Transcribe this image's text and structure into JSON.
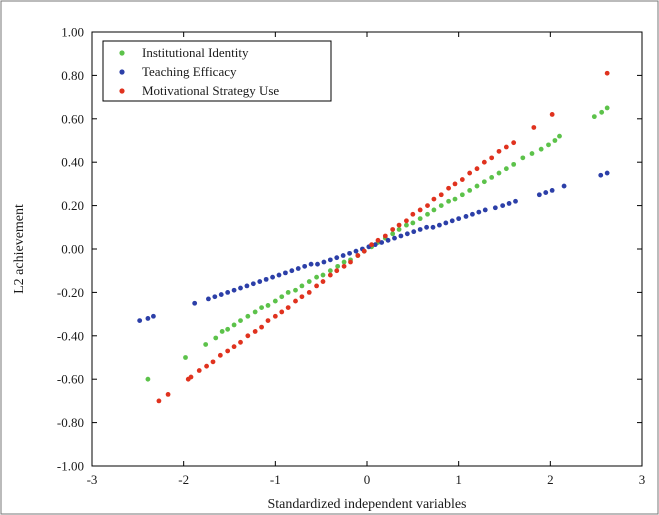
{
  "chart_data": {
    "type": "scatter",
    "title": "",
    "xlabel": "Standardized independent variables",
    "ylabel": "L2 achievement",
    "xlim": [
      -3,
      3
    ],
    "ylim": [
      -1.0,
      1.0
    ],
    "xticks": [
      -3,
      -2,
      -1,
      0,
      1,
      2,
      3
    ],
    "xtick_labels": [
      "-3",
      "-2",
      "-1",
      "0",
      "1",
      "2",
      "3"
    ],
    "yticks": [
      -1.0,
      -0.8,
      -0.6,
      -0.4,
      -0.2,
      0.0,
      0.2,
      0.4,
      0.6,
      0.8,
      1.0
    ],
    "ytick_labels": [
      "-1.00",
      "-0.80",
      "-0.60",
      "-0.40",
      "-0.20",
      "0.00",
      "0.20",
      "0.40",
      "0.60",
      "0.80",
      "1.00"
    ],
    "grid": false,
    "legend": "top-left",
    "series": [
      {
        "name": "Institutional Identity",
        "color": "#5cc24a",
        "x": [
          -2.39,
          -1.98,
          -1.76,
          -1.65,
          -1.58,
          -1.52,
          -1.45,
          -1.38,
          -1.3,
          -1.22,
          -1.15,
          -1.08,
          -1.0,
          -0.93,
          -0.86,
          -0.78,
          -0.71,
          -0.63,
          -0.55,
          -0.48,
          -0.4,
          -0.32,
          -0.25,
          -0.18,
          -0.1,
          -0.03,
          0.05,
          0.12,
          0.2,
          0.28,
          0.35,
          0.43,
          0.5,
          0.58,
          0.66,
          0.73,
          0.81,
          0.89,
          0.96,
          1.04,
          1.12,
          1.2,
          1.28,
          1.36,
          1.44,
          1.52,
          1.6,
          1.7,
          1.8,
          1.9,
          1.98,
          2.05,
          2.1,
          2.48,
          2.56,
          2.62
        ],
        "y": [
          -0.6,
          -0.5,
          -0.44,
          -0.41,
          -0.38,
          -0.37,
          -0.35,
          -0.33,
          -0.31,
          -0.29,
          -0.27,
          -0.26,
          -0.24,
          -0.22,
          -0.2,
          -0.19,
          -0.17,
          -0.15,
          -0.13,
          -0.12,
          -0.1,
          -0.08,
          -0.06,
          -0.05,
          -0.03,
          -0.01,
          0.01,
          0.03,
          0.05,
          0.07,
          0.09,
          0.11,
          0.12,
          0.14,
          0.16,
          0.18,
          0.2,
          0.22,
          0.23,
          0.25,
          0.27,
          0.29,
          0.31,
          0.33,
          0.35,
          0.37,
          0.39,
          0.42,
          0.44,
          0.46,
          0.48,
          0.5,
          0.52,
          0.61,
          0.63,
          0.65
        ]
      },
      {
        "name": "Teaching Efficacy",
        "color": "#2c3fa8",
        "x": [
          -2.48,
          -2.39,
          -2.33,
          -1.88,
          -1.73,
          -1.66,
          -1.59,
          -1.52,
          -1.45,
          -1.38,
          -1.31,
          -1.24,
          -1.17,
          -1.1,
          -1.03,
          -0.96,
          -0.89,
          -0.82,
          -0.75,
          -0.68,
          -0.61,
          -0.54,
          -0.47,
          -0.4,
          -0.33,
          -0.26,
          -0.19,
          -0.12,
          -0.05,
          0.02,
          0.09,
          0.16,
          0.23,
          0.3,
          0.37,
          0.44,
          0.51,
          0.58,
          0.65,
          0.72,
          0.79,
          0.86,
          0.93,
          1.0,
          1.08,
          1.15,
          1.22,
          1.29,
          1.4,
          1.48,
          1.55,
          1.62,
          1.88,
          1.95,
          2.02,
          2.15,
          2.55,
          2.62
        ],
        "y": [
          -0.33,
          -0.32,
          -0.31,
          -0.25,
          -0.23,
          -0.22,
          -0.21,
          -0.2,
          -0.19,
          -0.18,
          -0.17,
          -0.16,
          -0.15,
          -0.14,
          -0.13,
          -0.12,
          -0.11,
          -0.1,
          -0.09,
          -0.08,
          -0.07,
          -0.07,
          -0.06,
          -0.05,
          -0.04,
          -0.03,
          -0.02,
          -0.01,
          0.0,
          0.01,
          0.02,
          0.03,
          0.04,
          0.05,
          0.06,
          0.07,
          0.08,
          0.09,
          0.1,
          0.1,
          0.11,
          0.12,
          0.13,
          0.14,
          0.15,
          0.16,
          0.17,
          0.18,
          0.19,
          0.2,
          0.21,
          0.22,
          0.25,
          0.26,
          0.27,
          0.29,
          0.34,
          0.35
        ]
      },
      {
        "name": "Motivational Strategy Use",
        "color": "#e0321e",
        "x": [
          -2.27,
          -2.17,
          -1.95,
          -1.92,
          -1.83,
          -1.75,
          -1.68,
          -1.6,
          -1.52,
          -1.45,
          -1.38,
          -1.3,
          -1.22,
          -1.15,
          -1.08,
          -1.0,
          -0.93,
          -0.86,
          -0.78,
          -0.71,
          -0.63,
          -0.55,
          -0.48,
          -0.4,
          -0.33,
          -0.25,
          -0.18,
          -0.1,
          -0.03,
          0.05,
          0.12,
          0.2,
          0.28,
          0.35,
          0.43,
          0.5,
          0.58,
          0.66,
          0.73,
          0.81,
          0.89,
          0.96,
          1.04,
          1.12,
          1.2,
          1.28,
          1.36,
          1.44,
          1.52,
          1.6,
          1.82,
          2.02,
          2.62
        ],
        "y": [
          -0.7,
          -0.67,
          -0.6,
          -0.59,
          -0.56,
          -0.54,
          -0.52,
          -0.49,
          -0.47,
          -0.45,
          -0.43,
          -0.4,
          -0.38,
          -0.36,
          -0.33,
          -0.31,
          -0.29,
          -0.27,
          -0.24,
          -0.22,
          -0.2,
          -0.17,
          -0.15,
          -0.12,
          -0.1,
          -0.08,
          -0.06,
          -0.03,
          -0.01,
          0.02,
          0.04,
          0.06,
          0.09,
          0.11,
          0.13,
          0.16,
          0.18,
          0.2,
          0.23,
          0.25,
          0.28,
          0.3,
          0.32,
          0.35,
          0.37,
          0.4,
          0.42,
          0.45,
          0.47,
          0.49,
          0.56,
          0.62,
          0.81
        ]
      }
    ]
  }
}
